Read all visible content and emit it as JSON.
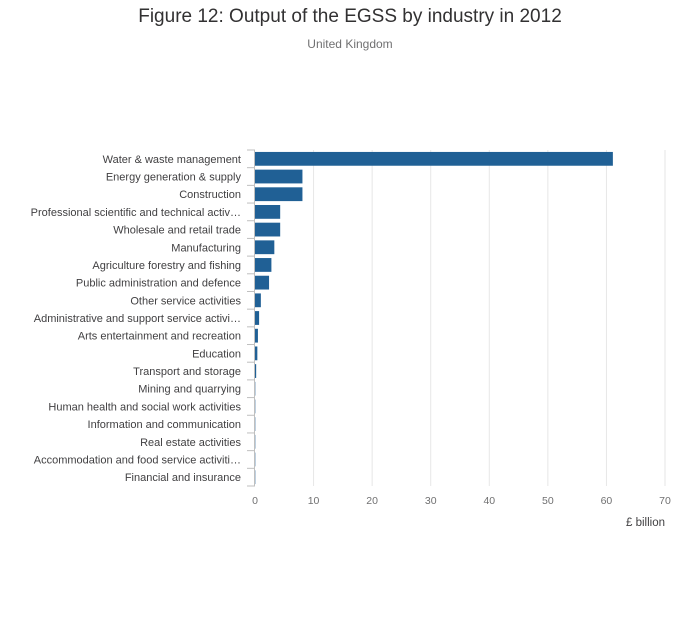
{
  "figure": {
    "title": "Figure 12: Output of the EGSS by industry in 2012",
    "subtitle": "United Kingdom"
  },
  "colors": {
    "bar": "#206095",
    "grid": "#e6e6e6",
    "axis": "#bfbfbf"
  },
  "chart_data": {
    "type": "bar",
    "orientation": "horizontal",
    "title": "Figure 12: Output of the EGSS by industry in 2012",
    "subtitle": "United Kingdom",
    "xlabel": "£ billion",
    "ylabel": "",
    "xlim": [
      0,
      70
    ],
    "xticks": [
      0,
      10,
      20,
      30,
      40,
      50,
      60,
      70
    ],
    "grid": true,
    "categories": [
      "Water & waste management",
      "Energy generation & supply",
      "Construction",
      "Professional scientific and technical activ…",
      "Wholesale and retail trade",
      "Manufacturing",
      "Agriculture forestry and fishing",
      "Public administration and defence",
      "Other service activities",
      "Administrative and support service activi…",
      "Arts entertainment and recreation",
      "Education",
      "Transport and storage",
      "Mining and quarrying",
      "Human health and social work activities",
      "Information and communication",
      "Real estate activities",
      "Accommodation and food service activiti…",
      "Financial and insurance"
    ],
    "values": [
      61.1,
      8.1,
      8.1,
      4.3,
      4.3,
      3.3,
      2.8,
      2.4,
      1.0,
      0.7,
      0.5,
      0.4,
      0.2,
      0.05,
      0.05,
      0.05,
      0.05,
      0.05,
      0.05
    ]
  }
}
